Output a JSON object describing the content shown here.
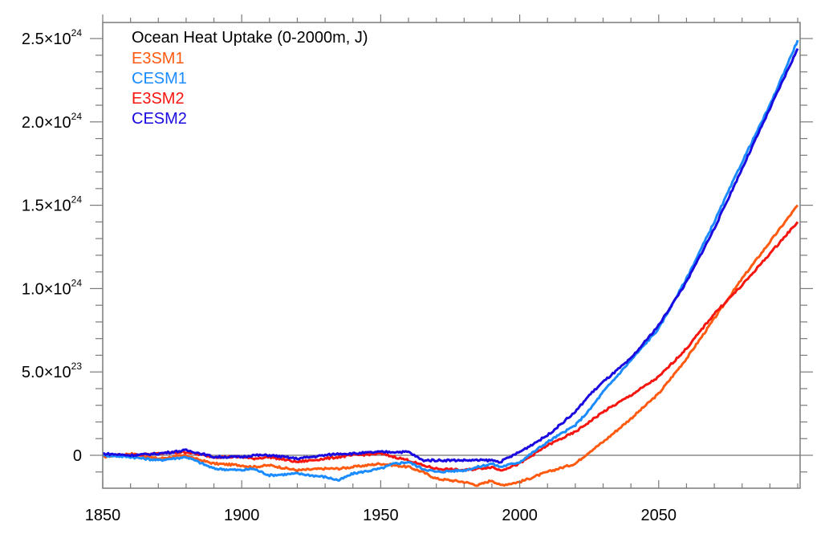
{
  "chart_data": {
    "type": "line",
    "title": "Ocean Heat Uptake (0-2000m, J)",
    "xlabel": "",
    "ylabel": "",
    "xlim": [
      1850,
      2100
    ],
    "ylim": [
      -2e+23,
      2.6e+24
    ],
    "grid": false,
    "legend_position": "top-left",
    "zero_line": true,
    "x_ticks": [
      1850,
      1900,
      1950,
      2000,
      2050
    ],
    "x_tick_labels": [
      "1850",
      "1900",
      "1950",
      "2000",
      "2050"
    ],
    "x_minor_step": 10,
    "y_ticks": [
      0,
      5e+23,
      1e+24,
      1.5e+24,
      2e+24,
      2.5e+24
    ],
    "y_tick_labels": [
      {
        "mantissa": "0",
        "exponent": ""
      },
      {
        "mantissa": "5.0×10",
        "exponent": "23"
      },
      {
        "mantissa": "1.0×10",
        "exponent": "24"
      },
      {
        "mantissa": "1.5×10",
        "exponent": "24"
      },
      {
        "mantissa": "2.0×10",
        "exponent": "24"
      },
      {
        "mantissa": "2.5×10",
        "exponent": "24"
      }
    ],
    "y_minor_step": 1e+23,
    "x": [
      1850,
      1860,
      1870,
      1880,
      1883,
      1890,
      1900,
      1904,
      1910,
      1920,
      1930,
      1935,
      1940,
      1950,
      1955,
      1960,
      1965,
      1970,
      1980,
      1985,
      1990,
      1993,
      2000,
      2010,
      2020,
      2025,
      2030,
      2040,
      2050,
      2060,
      2070,
      2080,
      2090,
      2100
    ],
    "series": [
      {
        "name": "E3SM1",
        "color": "#ff5a10",
        "values": [
          -1e+22,
          1e+22,
          -2e+22,
          0.0,
          -2e+22,
          -5e+22,
          -6e+22,
          -7e+22,
          -6e+22,
          -9e+22,
          -8e+22,
          -8e+22,
          -7e+22,
          -5e+22,
          -6e+22,
          -7e+22,
          -1e+23,
          -1.4e+23,
          -1.6e+23,
          -1.8e+23,
          -1.5e+23,
          -1.8e+23,
          -1.6e+23,
          -1e+23,
          -5e+22,
          2e+22,
          8e+22,
          2.2e+23,
          3.7e+23,
          5.8e+23,
          8.2e+23,
          1.06e+24,
          1.28e+24,
          1.5e+24
        ]
      },
      {
        "name": "CESM1",
        "color": "#1a8cff",
        "values": [
          0.0,
          -1e+22,
          -3e+22,
          -1e+22,
          -3e+22,
          -8e+22,
          -9e+22,
          -8e+22,
          -1.2e+23,
          -1.1e+23,
          -1.3e+23,
          -1.5e+23,
          -1.1e+23,
          -8e+22,
          -5e+22,
          -4e+22,
          -8e+22,
          -1e+23,
          -9e+22,
          -7e+22,
          -5e+22,
          -7e+22,
          -4e+22,
          8e+22,
          1.8e+23,
          2.7e+23,
          3.8e+23,
          5.7e+23,
          7.6e+23,
          1.06e+24,
          1.4e+24,
          1.76e+24,
          2.1e+24,
          2.49e+24
        ]
      },
      {
        "name": "E3SM2",
        "color": "#f5160f",
        "values": [
          0.0,
          0.0,
          1e+22,
          2e+22,
          1e+22,
          -1e+22,
          -1e+22,
          -2e+22,
          -1e+22,
          -4e+22,
          -2e+22,
          -1e+22,
          0.0,
          1e+22,
          -1e+22,
          -3e+22,
          -6e+22,
          -8e+22,
          -9e+22,
          -8e+22,
          -7e+22,
          -9e+22,
          -5e+22,
          6e+22,
          1.4e+23,
          2e+23,
          2.6e+23,
          3.6e+23,
          4.7e+23,
          6.4e+23,
          8.5e+23,
          1.02e+24,
          1.21e+24,
          1.4e+24
        ]
      },
      {
        "name": "CESM2",
        "color": "#1a0ae0",
        "values": [
          1e+22,
          0.0,
          1e+22,
          3e+22,
          2e+22,
          -1e+22,
          -1e+22,
          0.0,
          0.0,
          -2e+22,
          0.0,
          1e+22,
          1e+22,
          2e+22,
          2e+22,
          2e+22,
          -3e+22,
          -3e+22,
          -3e+22,
          -3e+22,
          -3e+22,
          -4e+22,
          2e+22,
          1.2e+23,
          2.6e+23,
          3.6e+23,
          4.4e+23,
          5.8e+23,
          7.8e+23,
          1.04e+24,
          1.36e+24,
          1.72e+24,
          2.08e+24,
          2.44e+24
        ]
      }
    ]
  }
}
